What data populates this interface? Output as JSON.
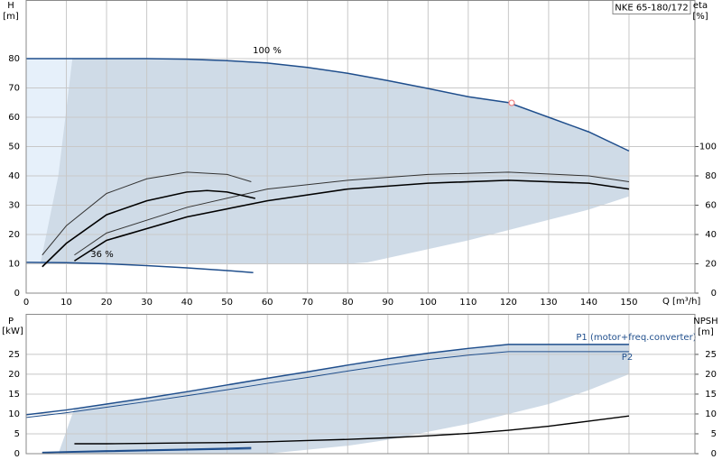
{
  "chart_data": [
    {
      "type": "line",
      "title": "NKE 65-180/172",
      "ylabel": "H",
      "yunit": "[m]",
      "y2label": "eta",
      "y2unit": "[%]",
      "xlabel": "Q [m³/h]",
      "xlim": [
        0,
        166.4
      ],
      "xticks": [
        0,
        10,
        20,
        30,
        40,
        50,
        60,
        70,
        80,
        90,
        100,
        110,
        120,
        130,
        140,
        150
      ],
      "xtick_labels": true,
      "ylim": [
        0,
        100
      ],
      "yticks": [
        0,
        10,
        20,
        30,
        40,
        50,
        60,
        70,
        80
      ],
      "y2lim": [
        0,
        200
      ],
      "y2ticks": [
        0,
        20,
        40,
        60,
        80,
        100
      ],
      "grid": true,
      "annotations": [
        "100 %",
        "36 %"
      ],
      "bands": [
        {
          "color": "#e6f0fa",
          "x": [
            0,
            12
          ],
          "upper": [
            80,
            80
          ],
          "lower": [
            10.5,
            10.3
          ]
        },
        {
          "color": "#cfdbe7",
          "x": [
            3.6,
            8,
            11.5,
            20,
            30,
            40,
            50,
            60,
            70,
            80,
            85,
            90,
            100,
            110,
            120,
            130,
            140,
            150
          ],
          "upper": [
            10.5,
            40,
            80,
            80,
            80,
            79.8,
            79.3,
            78.5,
            77,
            75,
            73.8,
            72.5,
            69.8,
            67,
            65,
            60,
            55,
            48.5
          ],
          "lower": [
            10.5,
            10.4,
            10.3,
            10,
            10,
            10,
            10,
            10,
            10,
            10,
            10.5,
            12,
            15,
            18,
            21.5,
            25,
            28.5,
            33
          ]
        }
      ],
      "series": [
        {
          "color": "#1f4e8c",
          "width": 1.5,
          "x": [
            0,
            10,
            20,
            30,
            40,
            50,
            60,
            70,
            80,
            90,
            100,
            110,
            120,
            130,
            140,
            150
          ],
          "values": [
            80,
            80,
            80,
            80,
            79.8,
            79.3,
            78.5,
            77,
            75,
            72.5,
            69.8,
            67,
            65,
            60,
            55,
            48.5
          ]
        },
        {
          "color": "#1f4e8c",
          "width": 1.5,
          "x": [
            0,
            10,
            20,
            30,
            40,
            50,
            56.5
          ],
          "values": [
            10.5,
            10.4,
            10,
            9.4,
            8.6,
            7.7,
            7
          ]
        },
        {
          "color": "#333333",
          "width": 1,
          "axis": "y2",
          "x": [
            12,
            20,
            40,
            60,
            80,
            100,
            120,
            140,
            150
          ],
          "values": [
            26,
            41,
            58.5,
            71,
            77,
            81,
            82.5,
            80,
            76
          ]
        },
        {
          "color": "#000000",
          "width": 1.6,
          "axis": "y2",
          "x": [
            12,
            20,
            40,
            60,
            80,
            100,
            120,
            140,
            150
          ],
          "values": [
            22,
            36,
            52,
            63,
            71,
            75,
            77,
            75,
            71
          ]
        },
        {
          "color": "#333333",
          "width": 1,
          "axis": "y2",
          "x": [
            4,
            10,
            20,
            30,
            40,
            50,
            56
          ],
          "values": [
            26,
            46,
            68,
            78,
            82.5,
            81,
            76
          ]
        },
        {
          "color": "#000000",
          "width": 1.6,
          "axis": "y2",
          "x": [
            4,
            10,
            20,
            30,
            40,
            45,
            50,
            57
          ],
          "values": [
            18,
            34,
            53.5,
            63,
            69,
            70,
            69,
            64.6
          ]
        }
      ],
      "points": [
        {
          "x": 120.8,
          "y": 64.9,
          "color": "#f08080"
        }
      ]
    },
    {
      "type": "line",
      "ylabel": "P",
      "yunit": "[kW]",
      "y2label": "NPSH",
      "y2unit": "[m]",
      "xlim": [
        0,
        166.4
      ],
      "xticks": [
        0,
        10,
        20,
        30,
        40,
        50,
        60,
        70,
        80,
        90,
        100,
        110,
        120,
        130,
        140,
        150
      ],
      "xtick_labels": false,
      "ylim": [
        0,
        35.2
      ],
      "yticks": [
        0,
        5,
        10,
        15,
        20,
        25
      ],
      "y2lim": [
        0,
        35.2
      ],
      "y2ticks": [
        0,
        5,
        10,
        15,
        20,
        25
      ],
      "grid": true,
      "bands": [
        {
          "color": "#cfdbe7",
          "x": [
            8,
            12,
            20,
            30,
            40,
            50,
            60,
            70,
            80,
            90,
            100,
            110,
            120,
            130,
            140,
            150
          ],
          "upper": [
            0,
            11.4,
            12.5,
            14,
            15.6,
            17.3,
            19,
            20.6,
            22.3,
            23.9,
            25.3,
            26.5,
            27.5,
            27.5,
            27.5,
            27.5
          ],
          "lower": [
            0,
            0,
            0,
            0,
            0,
            0,
            0,
            1,
            2,
            3.5,
            5.5,
            7.5,
            10,
            12.5,
            16,
            20
          ]
        }
      ],
      "series": [
        {
          "name": "P1 (motor+freq.converter)",
          "color": "#1f4e8c",
          "width": 1.5,
          "x": [
            0,
            10,
            20,
            30,
            40,
            50,
            60,
            70,
            80,
            90,
            100,
            110,
            120,
            150
          ],
          "values": [
            9.8,
            11,
            12.5,
            14,
            15.6,
            17.3,
            19,
            20.6,
            22.3,
            23.9,
            25.3,
            26.5,
            27.5,
            27.5
          ]
        },
        {
          "name": "P2",
          "color": "#1f4e8c",
          "width": 1,
          "x": [
            0,
            10,
            20,
            30,
            40,
            50,
            60,
            70,
            80,
            90,
            100,
            110,
            120,
            150
          ],
          "values": [
            9.1,
            10.3,
            11.7,
            13.1,
            14.6,
            16.1,
            17.7,
            19.2,
            20.8,
            22.3,
            23.7,
            24.8,
            25.7,
            25.7
          ]
        },
        {
          "color": "#1f4e8c",
          "width": 1.5,
          "x": [
            4,
            20,
            40,
            56
          ],
          "values": [
            0.3,
            0.7,
            1.1,
            1.5
          ]
        },
        {
          "color": "#1f4e8c",
          "width": 1,
          "x": [
            4,
            20,
            40,
            56
          ],
          "values": [
            0.2,
            0.5,
            0.9,
            1.2
          ]
        },
        {
          "color": "#000000",
          "width": 1.4,
          "axis": "y2",
          "x": [
            12,
            20,
            30,
            40,
            50,
            60,
            70,
            80,
            90,
            100,
            110,
            120,
            130,
            140,
            150
          ],
          "values": [
            2.5,
            2.5,
            2.6,
            2.7,
            2.8,
            3,
            3.3,
            3.6,
            4,
            4.5,
            5.1,
            5.9,
            6.9,
            8.2,
            9.5
          ]
        }
      ]
    }
  ]
}
